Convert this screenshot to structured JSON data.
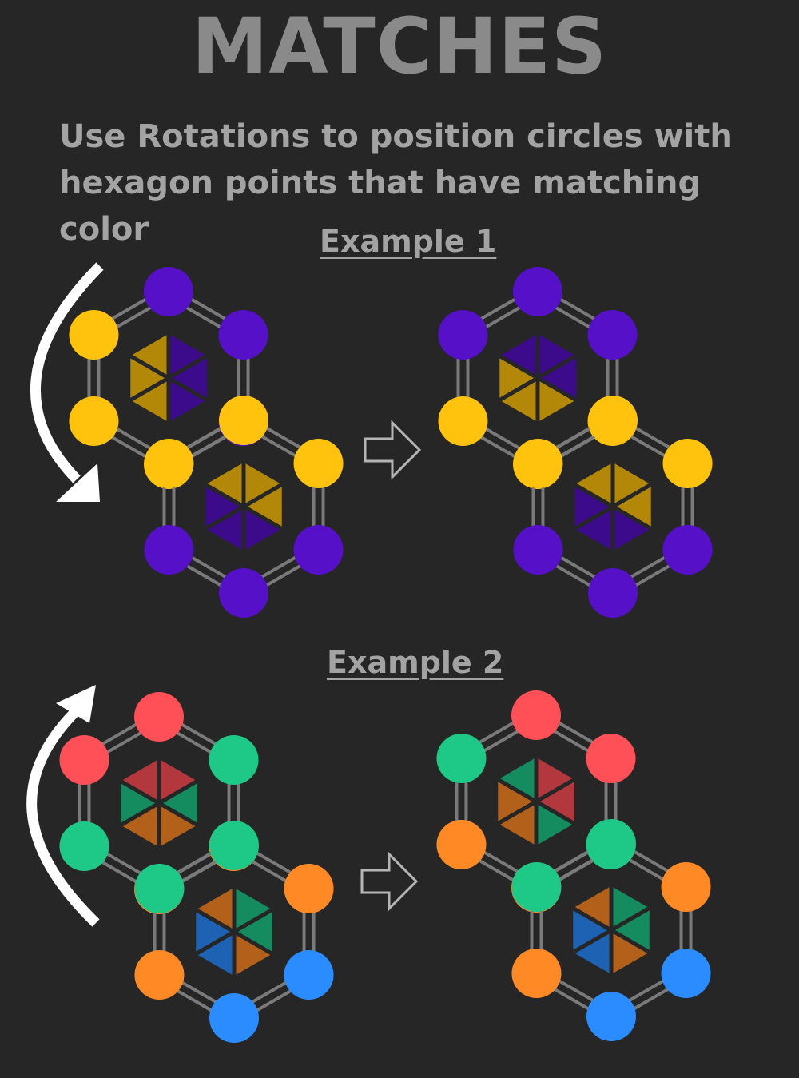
{
  "title": "MATCHES",
  "description": {
    "line1": "Use Rotations to position circles with",
    "line2": "hexagon points that have matching color"
  },
  "colors": {
    "background": "#262626",
    "purple": "#5510c8",
    "yellow": "#ffc20d",
    "red": "#ff5058",
    "green": "#1ec887",
    "orange": "#ff8a25",
    "blue": "#2a8cff",
    "edge": "#7a7a7a"
  },
  "board_icons": {
    "rotate_counterclockwise": "curved-arrow-down-icon",
    "rotate_clockwise": "curved-arrow-up-icon",
    "transition": "outline-right-arrow-icon"
  },
  "examples": [
    {
      "label": "Example 1",
      "rotation_direction": "counterclockwise",
      "before": {
        "hexA": {
          "points": [
            "purple",
            "purple",
            "purple",
            "yellow",
            "yellow",
            "yellow"
          ],
          "wedges": [
            "purple",
            "purple",
            "purple",
            "yellow",
            "yellow",
            "yellow"
          ]
        },
        "hexB": {
          "points": [
            "yellow",
            "yellow",
            "purple",
            "purple",
            "purple",
            "yellow"
          ],
          "wedges": [
            "yellow",
            "yellow",
            "purple",
            "purple",
            "purple",
            "yellow"
          ]
        }
      },
      "after": {
        "hexA": {
          "points": [
            "purple",
            "purple",
            "yellow",
            "yellow",
            "yellow",
            "purple"
          ],
          "wedges": [
            "purple",
            "purple",
            "yellow",
            "yellow",
            "yellow",
            "purple"
          ]
        },
        "hexB": {
          "points": [
            "yellow",
            "yellow",
            "purple",
            "purple",
            "purple",
            "yellow"
          ],
          "wedges": [
            "yellow",
            "yellow",
            "purple",
            "purple",
            "purple",
            "yellow"
          ]
        }
      }
    },
    {
      "label": "Example 2",
      "rotation_direction": "clockwise",
      "before": {
        "hexA": {
          "points": [
            "red",
            "green",
            "orange",
            "orange",
            "green",
            "red"
          ],
          "wedges": [
            "red",
            "green",
            "orange",
            "orange",
            "green",
            "red"
          ]
        },
        "hexB": {
          "points": [
            "green",
            "orange",
            "blue",
            "blue",
            "orange",
            "green"
          ],
          "wedges": [
            "green",
            "green",
            "orange",
            "blue",
            "blue",
            "orange"
          ]
        }
      },
      "after": {
        "hexA": {
          "points": [
            "red",
            "red",
            "green",
            "orange",
            "orange",
            "green"
          ],
          "wedges": [
            "red",
            "red",
            "green",
            "orange",
            "orange",
            "green"
          ]
        },
        "hexB": {
          "points": [
            "green",
            "orange",
            "blue",
            "blue",
            "orange",
            "green"
          ],
          "wedges": [
            "green",
            "green",
            "orange",
            "blue",
            "blue",
            "orange"
          ]
        }
      }
    }
  ]
}
